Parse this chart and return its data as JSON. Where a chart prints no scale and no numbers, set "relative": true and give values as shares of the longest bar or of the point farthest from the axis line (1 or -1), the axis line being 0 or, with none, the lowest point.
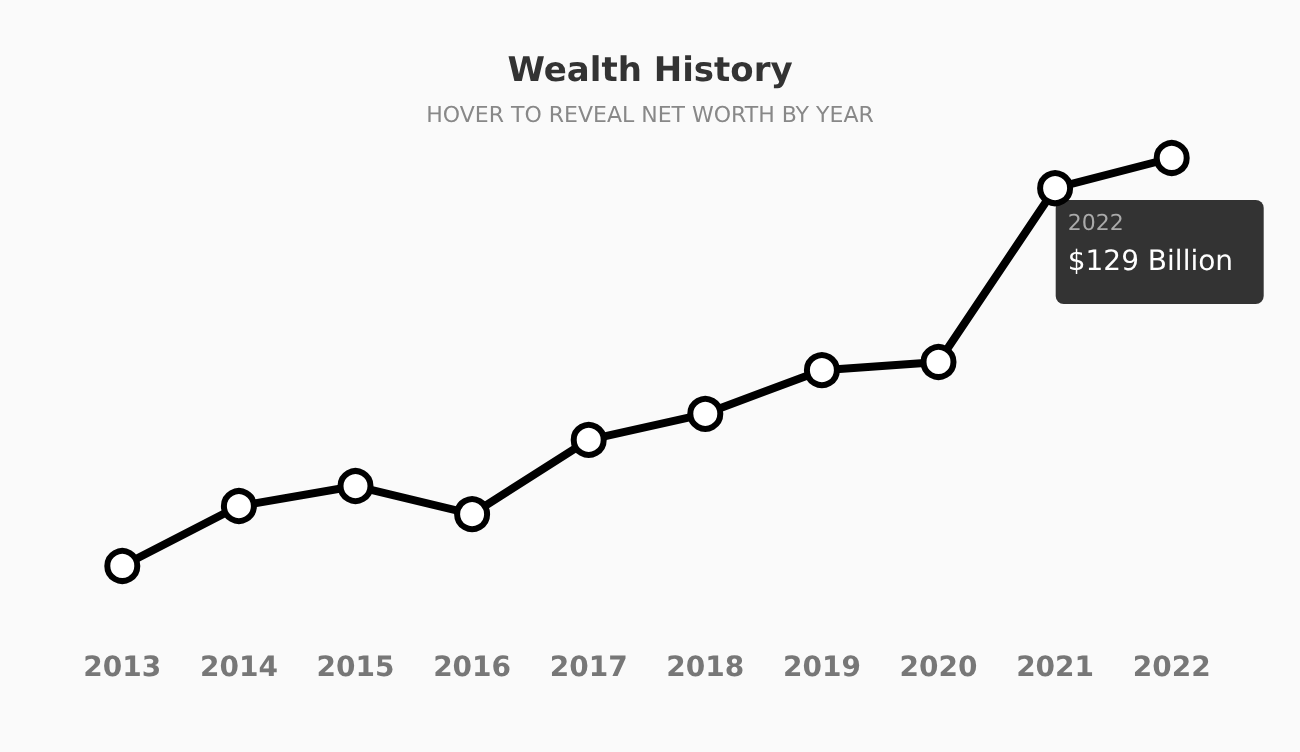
{
  "chart_data": {
    "type": "line",
    "title": "Wealth History",
    "subtitle": "HOVER TO REVEAL NET WORTH BY YEAR",
    "categories": [
      "2013",
      "2014",
      "2015",
      "2016",
      "2017",
      "2018",
      "2019",
      "2020",
      "2021",
      "2022"
    ],
    "values": [
      0,
      0.147,
      0.196,
      0.127,
      0.309,
      0.373,
      0.48,
      0.5,
      0.926,
      1
    ],
    "color": "#000000",
    "relative": true,
    "marker": "circle",
    "line_style": "solid",
    "annotations": [
      "2022",
      "$129 Billion"
    ]
  }
}
